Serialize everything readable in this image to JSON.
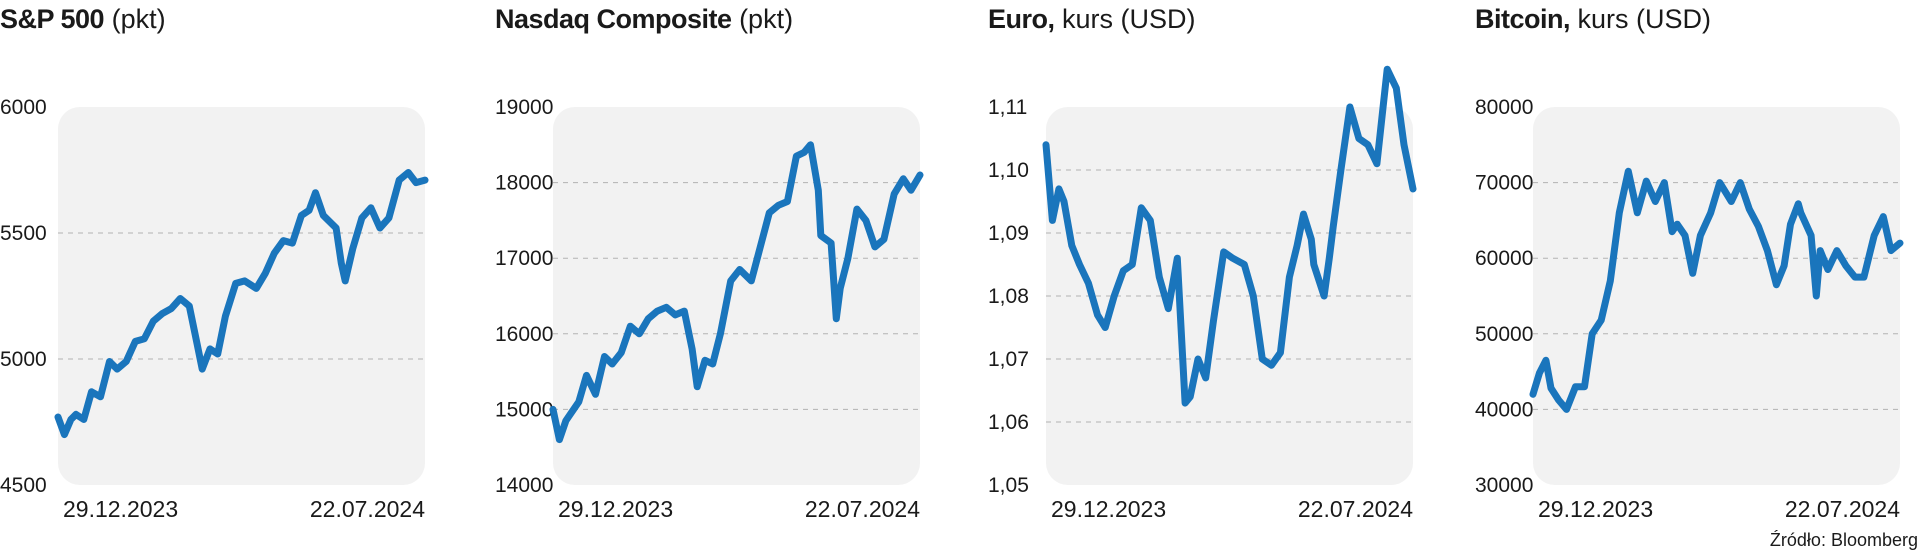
{
  "source": "Źródło: Bloomberg",
  "colors": {
    "line": "#1a75bc",
    "plot_bg": "#f2f2f2",
    "grid": "#b3b3b3",
    "text": "#1a1a1a"
  },
  "chart_data": [
    {
      "type": "line",
      "title": "S&P 500",
      "unit": "(pkt)",
      "y_ticks": [
        "6000",
        "5500",
        "5000",
        "4500"
      ],
      "x_ticks": [
        "29.12.2023",
        "22.07.2024"
      ],
      "ylim": [
        4500,
        6000
      ],
      "xlim": [
        "2023-12-29",
        "2024-10-09"
      ],
      "grid": "horizontal dashed",
      "series": [
        {
          "x": [
            "2023-12-29",
            "2024-01-03",
            "2024-01-08",
            "2024-01-12",
            "2024-01-18",
            "2024-01-24",
            "2024-01-31",
            "2024-02-07",
            "2024-02-13",
            "2024-02-20",
            "2024-02-27",
            "2024-03-05",
            "2024-03-12",
            "2024-03-19",
            "2024-03-26",
            "2024-04-02",
            "2024-04-09",
            "2024-04-15",
            "2024-04-19",
            "2024-04-25",
            "2024-05-01",
            "2024-05-07",
            "2024-05-15",
            "2024-05-22",
            "2024-05-31",
            "2024-06-07",
            "2024-06-14",
            "2024-06-21",
            "2024-06-28",
            "2024-07-05",
            "2024-07-11",
            "2024-07-16",
            "2024-07-22",
            "2024-07-24",
            "2024-08-01",
            "2024-08-05",
            "2024-08-08",
            "2024-08-14",
            "2024-08-21",
            "2024-08-28",
            "2024-09-04",
            "2024-09-11",
            "2024-09-19",
            "2024-09-26",
            "2024-10-02",
            "2024-10-09"
          ],
          "y": [
            4770,
            4700,
            4760,
            4780,
            4760,
            4870,
            4850,
            4990,
            4960,
            4990,
            5070,
            5080,
            5150,
            5180,
            5200,
            5240,
            5210,
            5060,
            4960,
            5040,
            5020,
            5170,
            5300,
            5310,
            5280,
            5340,
            5420,
            5470,
            5460,
            5570,
            5590,
            5660,
            5570,
            5560,
            5520,
            5380,
            5310,
            5440,
            5560,
            5600,
            5520,
            5560,
            5710,
            5740,
            5700,
            5710
          ]
        }
      ]
    },
    {
      "type": "line",
      "title": "Nasdaq Composite",
      "unit": "(pkt)",
      "y_ticks": [
        "19000",
        "18000",
        "17000",
        "16000",
        "15000",
        "14000"
      ],
      "x_ticks": [
        "29.12.2023",
        "22.07.2024"
      ],
      "ylim": [
        14000,
        19000
      ],
      "xlim": [
        "2023-12-29",
        "2024-10-09"
      ],
      "grid": "horizontal dashed",
      "series": [
        {
          "x": [
            "2023-12-29",
            "2024-01-03",
            "2024-01-08",
            "2024-01-12",
            "2024-01-18",
            "2024-01-24",
            "2024-01-31",
            "2024-02-07",
            "2024-02-13",
            "2024-02-20",
            "2024-02-27",
            "2024-03-05",
            "2024-03-12",
            "2024-03-19",
            "2024-03-26",
            "2024-04-02",
            "2024-04-09",
            "2024-04-15",
            "2024-04-19",
            "2024-04-25",
            "2024-05-01",
            "2024-05-07",
            "2024-05-15",
            "2024-05-22",
            "2024-05-31",
            "2024-06-07",
            "2024-06-14",
            "2024-06-21",
            "2024-06-28",
            "2024-07-05",
            "2024-07-11",
            "2024-07-16",
            "2024-07-22",
            "2024-07-24",
            "2024-08-01",
            "2024-08-05",
            "2024-08-08",
            "2024-08-14",
            "2024-08-21",
            "2024-08-28",
            "2024-09-04",
            "2024-09-11",
            "2024-09-19",
            "2024-09-26",
            "2024-10-02",
            "2024-10-09"
          ],
          "y": [
            15000,
            14600,
            14850,
            14950,
            15100,
            15450,
            15200,
            15700,
            15600,
            15750,
            16100,
            16000,
            16200,
            16300,
            16350,
            16250,
            16300,
            15800,
            15300,
            15650,
            15600,
            16000,
            16700,
            16850,
            16700,
            17150,
            17600,
            17700,
            17750,
            18350,
            18400,
            18500,
            17900,
            17300,
            17200,
            16200,
            16600,
            17000,
            17650,
            17500,
            17150,
            17250,
            17850,
            18050,
            17900,
            18100
          ]
        }
      ]
    },
    {
      "type": "line",
      "title": "Euro,",
      "unit": "kurs (USD)",
      "y_ticks": [
        "1,11",
        "1,10",
        "1,09",
        "1,08",
        "1,07",
        "1,06",
        "1,05"
      ],
      "x_ticks": [
        "29.12.2023",
        "22.07.2024"
      ],
      "ylim": [
        1.05,
        1.11
      ],
      "xlim": [
        "2023-12-29",
        "2024-10-09"
      ],
      "grid": "horizontal dashed",
      "series": [
        {
          "x": [
            "2023-12-29",
            "2024-01-03",
            "2024-01-08",
            "2024-01-12",
            "2024-01-18",
            "2024-01-24",
            "2024-01-31",
            "2024-02-07",
            "2024-02-13",
            "2024-02-20",
            "2024-02-27",
            "2024-03-05",
            "2024-03-12",
            "2024-03-19",
            "2024-03-26",
            "2024-04-02",
            "2024-04-09",
            "2024-04-15",
            "2024-04-19",
            "2024-04-25",
            "2024-05-01",
            "2024-05-07",
            "2024-05-15",
            "2024-05-22",
            "2024-05-31",
            "2024-06-07",
            "2024-06-14",
            "2024-06-21",
            "2024-06-28",
            "2024-07-05",
            "2024-07-11",
            "2024-07-16",
            "2024-07-22",
            "2024-07-24",
            "2024-08-01",
            "2024-08-05",
            "2024-08-08",
            "2024-08-14",
            "2024-08-21",
            "2024-08-28",
            "2024-09-04",
            "2024-09-11",
            "2024-09-19",
            "2024-09-26",
            "2024-10-02",
            "2024-10-09"
          ],
          "y": [
            1.104,
            1.092,
            1.097,
            1.095,
            1.088,
            1.085,
            1.082,
            1.077,
            1.075,
            1.08,
            1.084,
            1.085,
            1.094,
            1.092,
            1.083,
            1.078,
            1.086,
            1.063,
            1.064,
            1.07,
            1.067,
            1.076,
            1.087,
            1.086,
            1.085,
            1.08,
            1.07,
            1.069,
            1.071,
            1.083,
            1.088,
            1.093,
            1.089,
            1.085,
            1.08,
            1.086,
            1.091,
            1.1,
            1.11,
            1.105,
            1.104,
            1.101,
            1.116,
            1.113,
            1.104,
            1.097
          ]
        }
      ]
    },
    {
      "type": "line",
      "title": "Bitcoin,",
      "unit": "kurs (USD)",
      "y_ticks": [
        "80000",
        "70000",
        "60000",
        "50000",
        "40000",
        "30000"
      ],
      "x_ticks": [
        "29.12.2023",
        "22.07.2024"
      ],
      "ylim": [
        30000,
        80000
      ],
      "xlim": [
        "2023-12-29",
        "2024-10-09"
      ],
      "grid": "horizontal dashed",
      "series": [
        {
          "x": [
            "2023-12-29",
            "2024-01-03",
            "2024-01-08",
            "2024-01-12",
            "2024-01-18",
            "2024-01-24",
            "2024-01-31",
            "2024-02-07",
            "2024-02-13",
            "2024-02-20",
            "2024-02-27",
            "2024-03-05",
            "2024-03-12",
            "2024-03-19",
            "2024-03-26",
            "2024-04-02",
            "2024-04-09",
            "2024-04-15",
            "2024-04-19",
            "2024-04-25",
            "2024-05-01",
            "2024-05-07",
            "2024-05-15",
            "2024-05-22",
            "2024-05-31",
            "2024-06-07",
            "2024-06-14",
            "2024-06-21",
            "2024-06-28",
            "2024-07-05",
            "2024-07-11",
            "2024-07-16",
            "2024-07-22",
            "2024-07-24",
            "2024-08-01",
            "2024-08-05",
            "2024-08-08",
            "2024-08-14",
            "2024-08-21",
            "2024-08-28",
            "2024-09-04",
            "2024-09-11",
            "2024-09-19",
            "2024-09-26",
            "2024-10-02",
            "2024-10-09"
          ],
          "y": [
            42000,
            44800,
            46500,
            42800,
            41200,
            40000,
            43000,
            43000,
            50000,
            51800,
            57000,
            66000,
            71500,
            66000,
            70200,
            67500,
            70000,
            63500,
            64500,
            63000,
            58000,
            63000,
            66000,
            70000,
            67500,
            70000,
            66500,
            64200,
            61000,
            56500,
            59000,
            64500,
            67200,
            66000,
            63000,
            55000,
            61000,
            58500,
            61000,
            59000,
            57500,
            57500,
            63000,
            65500,
            61000,
            62000
          ]
        }
      ]
    }
  ]
}
